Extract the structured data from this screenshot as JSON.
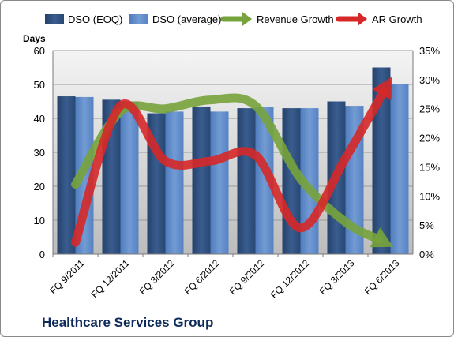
{
  "chart_data": {
    "type": "bar",
    "categories": [
      "FQ 9/2011",
      "FQ 12/2011",
      "FQ 3/2012",
      "FQ 6/2012",
      "FQ 9/2012",
      "FQ 12/2012",
      "FQ 3/2013",
      "FQ 6/2013"
    ],
    "series": [
      {
        "name": "DSO (EOQ)",
        "type": "bar",
        "axis": "left",
        "color": "#2e4f7e",
        "values": [
          46.5,
          45.5,
          41.5,
          43.5,
          43.0,
          43.0,
          45.0,
          55.0
        ]
      },
      {
        "name": "DSO (average)",
        "type": "bar",
        "axis": "left",
        "color": "#5b87c5",
        "values": [
          46.3,
          45.0,
          42.0,
          42.0,
          43.3,
          43.0,
          43.7,
          50.2
        ]
      },
      {
        "name": "Revenue Growth",
        "type": "line",
        "axis": "right",
        "color": "#77a33c",
        "values": [
          12.0,
          24.5,
          25.0,
          26.5,
          25.5,
          13.0,
          5.5,
          1.5
        ]
      },
      {
        "name": "AR Growth",
        "type": "line",
        "axis": "right",
        "color": "#d62828",
        "values": [
          2.0,
          25.5,
          16.0,
          16.0,
          17.0,
          4.5,
          16.5,
          30.0
        ]
      }
    ],
    "y_left": {
      "label": "Days",
      "min": 0,
      "max": 60,
      "ticks": [
        "0",
        "10",
        "20",
        "30",
        "40",
        "50",
        "60"
      ]
    },
    "y_right": {
      "label": "",
      "min": 0,
      "max": 35,
      "ticks": [
        "0%",
        "5%",
        "10%",
        "15%",
        "20%",
        "25%",
        "30%",
        "35%"
      ]
    },
    "legend_position": "top",
    "grid": true,
    "plot_background": "#d0d0d0",
    "title": "Healthcare Services Group"
  }
}
